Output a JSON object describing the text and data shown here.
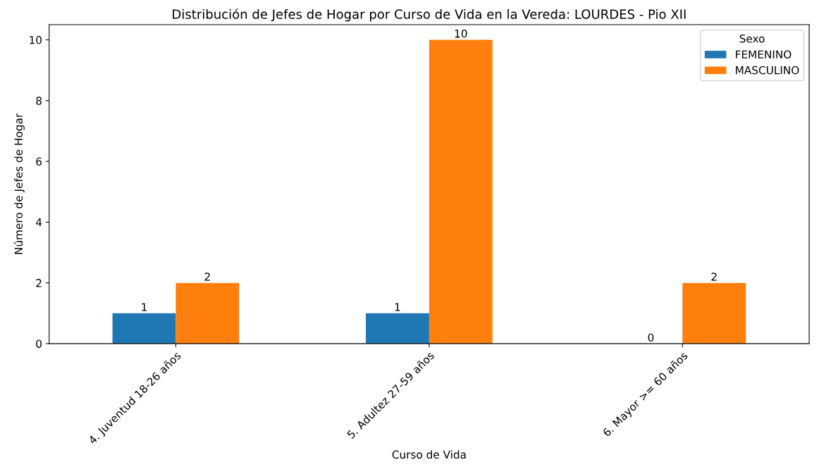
{
  "chart_data": {
    "type": "bar",
    "title": "Distribución de Jefes de Hogar por Curso de Vida en la Vereda: LOURDES - Pio XII",
    "xlabel": "Curso de Vida",
    "ylabel": "Número de Jefes de Hogar",
    "legend_title": "Sexo",
    "categories": [
      "4. Juventud 18-26 años",
      "5. Adultez 27-59 años",
      "6. Mayor >= 60 años"
    ],
    "series": [
      {
        "name": "FEMENINO",
        "color": "#1f77b4",
        "values": [
          1,
          1,
          0
        ]
      },
      {
        "name": "MASCULINO",
        "color": "#ff7f0e",
        "values": [
          2,
          10,
          2
        ]
      }
    ],
    "ylim": [
      0,
      10.5
    ],
    "yticks": [
      0,
      2,
      4,
      6,
      8,
      10
    ],
    "data_labels": true,
    "legend": "top right",
    "grid": false
  }
}
